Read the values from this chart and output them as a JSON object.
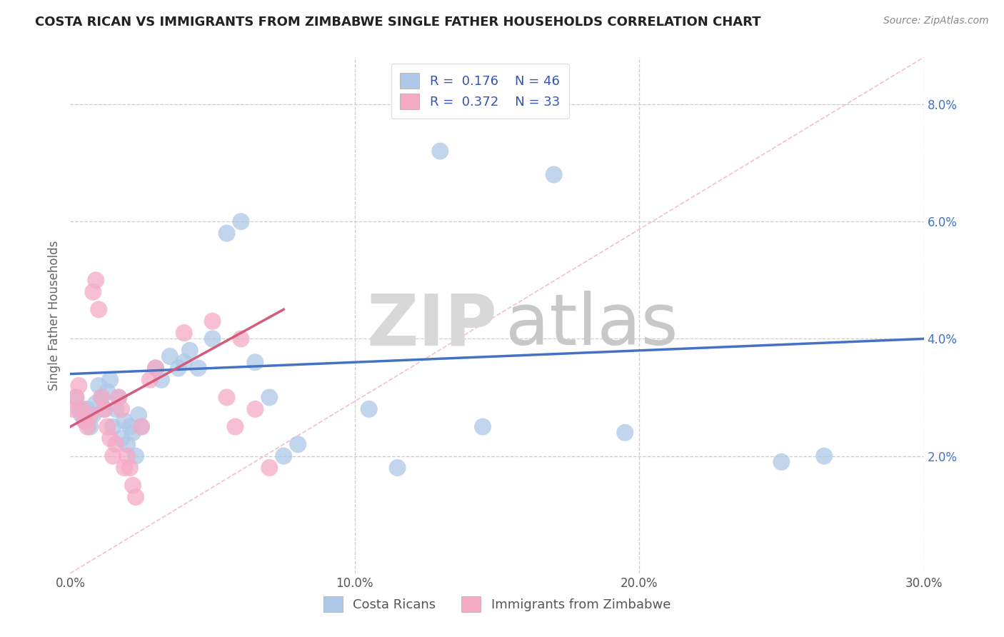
{
  "title": "COSTA RICAN VS IMMIGRANTS FROM ZIMBABWE SINGLE FATHER HOUSEHOLDS CORRELATION CHART",
  "source": "Source: ZipAtlas.com",
  "ylabel": "Single Father Households",
  "xmin": 0.0,
  "xmax": 0.3,
  "ymin": 0.0,
  "ymax": 0.088,
  "yticks": [
    0.02,
    0.04,
    0.06,
    0.08
  ],
  "ytick_labels": [
    "2.0%",
    "4.0%",
    "6.0%",
    "8.0%"
  ],
  "xticks": [
    0.0,
    0.1,
    0.2,
    0.3
  ],
  "xtick_labels": [
    "0.0%",
    "10.0%",
    "20.0%",
    "30.0%"
  ],
  "blue_R": 0.176,
  "blue_N": 46,
  "pink_R": 0.372,
  "pink_N": 33,
  "blue_color": "#adc8e8",
  "pink_color": "#f5aac5",
  "blue_line_color": "#4472c4",
  "pink_line_color": "#d45c7a",
  "dashed_line_color": "#f0b0c0",
  "watermark_zip": "ZIP",
  "watermark_atlas": "atlas",
  "legend_entries": [
    "Costa Ricans",
    "Immigrants from Zimbabwe"
  ],
  "blue_line_x0": 0.0,
  "blue_line_y0": 0.034,
  "blue_line_x1": 0.3,
  "blue_line_y1": 0.04,
  "pink_line_x0": 0.0,
  "pink_line_y0": 0.025,
  "pink_line_x1": 0.075,
  "pink_line_y1": 0.045,
  "blue_points_x": [
    0.002,
    0.003,
    0.004,
    0.005,
    0.006,
    0.007,
    0.008,
    0.009,
    0.01,
    0.011,
    0.012,
    0.013,
    0.014,
    0.015,
    0.016,
    0.017,
    0.018,
    0.019,
    0.02,
    0.021,
    0.022,
    0.023,
    0.024,
    0.025,
    0.03,
    0.032,
    0.035,
    0.038,
    0.04,
    0.042,
    0.045,
    0.05,
    0.055,
    0.06,
    0.065,
    0.07,
    0.075,
    0.08,
    0.105,
    0.115,
    0.145,
    0.195,
    0.25,
    0.265,
    0.13,
    0.17
  ],
  "blue_points_y": [
    0.03,
    0.028,
    0.027,
    0.026,
    0.028,
    0.025,
    0.027,
    0.029,
    0.032,
    0.03,
    0.028,
    0.031,
    0.033,
    0.025,
    0.028,
    0.03,
    0.023,
    0.026,
    0.022,
    0.025,
    0.024,
    0.02,
    0.027,
    0.025,
    0.035,
    0.033,
    0.037,
    0.035,
    0.036,
    0.038,
    0.035,
    0.04,
    0.058,
    0.06,
    0.036,
    0.03,
    0.02,
    0.022,
    0.028,
    0.018,
    0.025,
    0.024,
    0.019,
    0.02,
    0.072,
    0.068
  ],
  "pink_points_x": [
    0.001,
    0.002,
    0.003,
    0.004,
    0.005,
    0.006,
    0.007,
    0.008,
    0.009,
    0.01,
    0.011,
    0.012,
    0.013,
    0.014,
    0.015,
    0.016,
    0.017,
    0.018,
    0.019,
    0.02,
    0.021,
    0.022,
    0.023,
    0.025,
    0.028,
    0.03,
    0.04,
    0.05,
    0.055,
    0.058,
    0.06,
    0.065,
    0.07
  ],
  "pink_points_y": [
    0.028,
    0.03,
    0.032,
    0.028,
    0.026,
    0.025,
    0.027,
    0.048,
    0.05,
    0.045,
    0.03,
    0.028,
    0.025,
    0.023,
    0.02,
    0.022,
    0.03,
    0.028,
    0.018,
    0.02,
    0.018,
    0.015,
    0.013,
    0.025,
    0.033,
    0.035,
    0.041,
    0.043,
    0.03,
    0.025,
    0.04,
    0.028,
    0.018
  ]
}
